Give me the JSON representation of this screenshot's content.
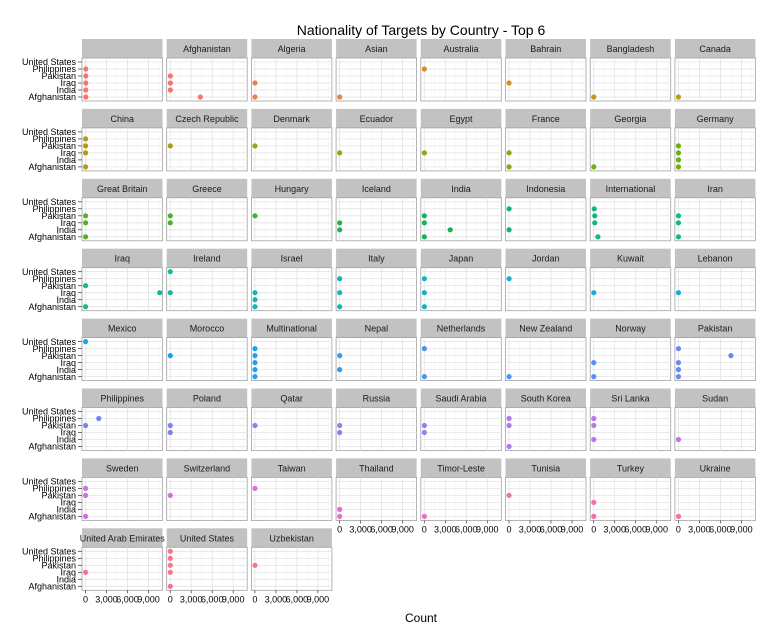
{
  "chart_data": {
    "type": "scatter",
    "title": "Nationality of Targets by Country - Top 6",
    "xlabel": "Count",
    "ylabel": "",
    "xlim": [
      -500,
      11000
    ],
    "x_ticks": [
      0,
      3000,
      6000,
      9000
    ],
    "x_tick_labels": [
      "0",
      "3,000",
      "6,000",
      "9,000"
    ],
    "y_categories": [
      "Afghanistan",
      "India",
      "Iraq",
      "Pakistan",
      "Philippines",
      "United States"
    ],
    "grid": true,
    "facet_layout": "8 columns, wrapped",
    "facets": [
      {
        "name": "",
        "color": "#F8766D",
        "points": [
          {
            "y": "Afghanistan",
            "x": 40
          },
          {
            "y": "India",
            "x": 40
          },
          {
            "y": "Iraq",
            "x": 40
          },
          {
            "y": "Pakistan",
            "x": 40
          },
          {
            "y": "Philippines",
            "x": 40
          }
        ]
      },
      {
        "name": "Afghanistan",
        "color": "#F6766B",
        "points": [
          {
            "y": "Afghanistan",
            "x": 4300
          },
          {
            "y": "India",
            "x": 20
          },
          {
            "y": "Iraq",
            "x": 20
          },
          {
            "y": "Pakistan",
            "x": 20
          }
        ]
      },
      {
        "name": "Algeria",
        "color": "#ED7D56",
        "points": [
          {
            "y": "Afghanistan",
            "x": 10
          },
          {
            "y": "Iraq",
            "x": 10
          }
        ]
      },
      {
        "name": "Asian",
        "color": "#E6853F",
        "points": [
          {
            "y": "Afghanistan",
            "x": 10
          }
        ]
      },
      {
        "name": "Australia",
        "color": "#DB8B2A",
        "points": [
          {
            "y": "Philippines",
            "x": 10
          }
        ]
      },
      {
        "name": "Bahrain",
        "color": "#D1901C",
        "points": [
          {
            "y": "Iraq",
            "x": 10
          }
        ]
      },
      {
        "name": "Bangladesh",
        "color": "#C69613",
        "points": [
          {
            "y": "Afghanistan",
            "x": 10
          }
        ]
      },
      {
        "name": "Canada",
        "color": "#BA9B12",
        "points": [
          {
            "y": "Afghanistan",
            "x": 10
          }
        ]
      },
      {
        "name": "China",
        "color": "#B39C12",
        "points": [
          {
            "y": "Afghanistan",
            "x": 10
          },
          {
            "y": "Iraq",
            "x": 10
          },
          {
            "y": "Pakistan",
            "x": 10
          },
          {
            "y": "Philippines",
            "x": 10
          }
        ]
      },
      {
        "name": "Czech Republic",
        "color": "#A9A012",
        "points": [
          {
            "y": "Pakistan",
            "x": 10
          }
        ]
      },
      {
        "name": "Denmark",
        "color": "#A0A212",
        "points": [
          {
            "y": "Pakistan",
            "x": 10
          }
        ]
      },
      {
        "name": "Ecuador",
        "color": "#97A512",
        "points": [
          {
            "y": "Iraq",
            "x": 10
          }
        ]
      },
      {
        "name": "Egypt",
        "color": "#8CA812",
        "points": [
          {
            "y": "Iraq",
            "x": 10
          }
        ]
      },
      {
        "name": "France",
        "color": "#82AA12",
        "points": [
          {
            "y": "Afghanistan",
            "x": 10
          },
          {
            "y": "Iraq",
            "x": 10
          }
        ]
      },
      {
        "name": "Georgia",
        "color": "#79AC12",
        "points": [
          {
            "y": "Afghanistan",
            "x": 10
          }
        ]
      },
      {
        "name": "Germany",
        "color": "#6EAE12",
        "points": [
          {
            "y": "Afghanistan",
            "x": 10
          },
          {
            "y": "India",
            "x": 10
          },
          {
            "y": "Iraq",
            "x": 10
          },
          {
            "y": "Pakistan",
            "x": 10
          }
        ]
      },
      {
        "name": "Great Britain",
        "color": "#5CB01F",
        "points": [
          {
            "y": "Afghanistan",
            "x": 10
          },
          {
            "y": "Iraq",
            "x": 10
          },
          {
            "y": "Pakistan",
            "x": 10
          }
        ]
      },
      {
        "name": "Greece",
        "color": "#4DB22B",
        "points": [
          {
            "y": "Iraq",
            "x": 10
          },
          {
            "y": "Pakistan",
            "x": 10
          }
        ]
      },
      {
        "name": "Hungary",
        "color": "#3AB43A",
        "points": [
          {
            "y": "Pakistan",
            "x": 10
          }
        ]
      },
      {
        "name": "Iceland",
        "color": "#1FB54B",
        "points": [
          {
            "y": "India",
            "x": 10
          },
          {
            "y": "Iraq",
            "x": 10
          }
        ]
      },
      {
        "name": "India",
        "color": "#12B55A",
        "points": [
          {
            "y": "Afghanistan",
            "x": 10
          },
          {
            "y": "India",
            "x": 3700
          },
          {
            "y": "Iraq",
            "x": 10
          },
          {
            "y": "Pakistan",
            "x": 10
          }
        ]
      },
      {
        "name": "Indonesia",
        "color": "#12B66A",
        "points": [
          {
            "y": "India",
            "x": 10
          },
          {
            "y": "Philippines",
            "x": 10
          }
        ]
      },
      {
        "name": "International",
        "color": "#12B779",
        "points": [
          {
            "y": "Afghanistan",
            "x": 600
          },
          {
            "y": "Iraq",
            "x": 150
          },
          {
            "y": "Pakistan",
            "x": 150
          },
          {
            "y": "Philippines",
            "x": 80
          }
        ]
      },
      {
        "name": "Iran",
        "color": "#12B788",
        "points": [
          {
            "y": "Afghanistan",
            "x": 10
          },
          {
            "y": "Iraq",
            "x": 10
          },
          {
            "y": "Pakistan",
            "x": 10
          }
        ]
      },
      {
        "name": "Iraq",
        "color": "#12B897",
        "points": [
          {
            "y": "Afghanistan",
            "x": 10
          },
          {
            "y": "Iraq",
            "x": 10600
          },
          {
            "y": "Pakistan",
            "x": 10
          }
        ]
      },
      {
        "name": "Ireland",
        "color": "#12B8A5",
        "points": [
          {
            "y": "Iraq",
            "x": 10
          },
          {
            "y": "United States",
            "x": 10
          }
        ]
      },
      {
        "name": "Israel",
        "color": "#12B7B1",
        "points": [
          {
            "y": "Afghanistan",
            "x": 10
          },
          {
            "y": "India",
            "x": 10
          },
          {
            "y": "Iraq",
            "x": 10
          }
        ]
      },
      {
        "name": "Italy",
        "color": "#12B5BD",
        "points": [
          {
            "y": "Afghanistan",
            "x": 10
          },
          {
            "y": "Iraq",
            "x": 10
          },
          {
            "y": "Philippines",
            "x": 10
          }
        ]
      },
      {
        "name": "Japan",
        "color": "#12B3C8",
        "points": [
          {
            "y": "Afghanistan",
            "x": 10
          },
          {
            "y": "Iraq",
            "x": 10
          },
          {
            "y": "Philippines",
            "x": 10
          }
        ]
      },
      {
        "name": "Jordan",
        "color": "#12B0D2",
        "points": [
          {
            "y": "Philippines",
            "x": 10
          }
        ]
      },
      {
        "name": "Kuwait",
        "color": "#12ADDB",
        "points": [
          {
            "y": "Iraq",
            "x": 10
          }
        ]
      },
      {
        "name": "Lebanon",
        "color": "#12AAE3",
        "points": [
          {
            "y": "Iraq",
            "x": 10
          }
        ]
      },
      {
        "name": "Mexico",
        "color": "#12A7E9",
        "points": [
          {
            "y": "United States",
            "x": 10
          }
        ]
      },
      {
        "name": "Morocco",
        "color": "#12A4EE",
        "points": [
          {
            "y": "Pakistan",
            "x": 10
          }
        ]
      },
      {
        "name": "Multinational",
        "color": "#22A0F2",
        "points": [
          {
            "y": "Afghanistan",
            "x": 10
          },
          {
            "y": "India",
            "x": 10
          },
          {
            "y": "Iraq",
            "x": 10
          },
          {
            "y": "Pakistan",
            "x": 10
          },
          {
            "y": "Philippines",
            "x": 10
          }
        ]
      },
      {
        "name": "Nepal",
        "color": "#359CF5",
        "points": [
          {
            "y": "India",
            "x": 10
          },
          {
            "y": "Pakistan",
            "x": 10
          }
        ]
      },
      {
        "name": "Netherlands",
        "color": "#4598F6",
        "points": [
          {
            "y": "Afghanistan",
            "x": 10
          },
          {
            "y": "Philippines",
            "x": 10
          }
        ]
      },
      {
        "name": "New Zealand",
        "color": "#4C94F6",
        "points": [
          {
            "y": "Afghanistan",
            "x": 10
          }
        ]
      },
      {
        "name": "Norway",
        "color": "#5890F6",
        "points": [
          {
            "y": "Afghanistan",
            "x": 10
          },
          {
            "y": "Iraq",
            "x": 10
          }
        ]
      },
      {
        "name": "Pakistan",
        "color": "#658CF5",
        "points": [
          {
            "y": "Afghanistan",
            "x": 10
          },
          {
            "y": "India",
            "x": 10
          },
          {
            "y": "Iraq",
            "x": 10
          },
          {
            "y": "Pakistan",
            "x": 7500
          },
          {
            "y": "Philippines",
            "x": 10
          }
        ]
      },
      {
        "name": "Philippines",
        "color": "#7088F4",
        "points": [
          {
            "y": "Philippines",
            "x": 1900
          },
          {
            "y": "Pakistan",
            "x": 10
          }
        ]
      },
      {
        "name": "Poland",
        "color": "#7C85F3",
        "points": [
          {
            "y": "Iraq",
            "x": 10
          },
          {
            "y": "Pakistan",
            "x": 10
          }
        ]
      },
      {
        "name": "Qatar",
        "color": "#8782F2",
        "points": [
          {
            "y": "Pakistan",
            "x": 10
          }
        ]
      },
      {
        "name": "Russia",
        "color": "#947FF1",
        "points": [
          {
            "y": "Iraq",
            "x": 10
          },
          {
            "y": "Pakistan",
            "x": 10
          }
        ]
      },
      {
        "name": "Saudi Arabia",
        "color": "#A17CF0",
        "points": [
          {
            "y": "Iraq",
            "x": 10
          },
          {
            "y": "Pakistan",
            "x": 10
          }
        ]
      },
      {
        "name": "South Korea",
        "color": "#AE79EF",
        "points": [
          {
            "y": "Afghanistan",
            "x": 10
          },
          {
            "y": "Pakistan",
            "x": 10
          },
          {
            "y": "Philippines",
            "x": 10
          }
        ]
      },
      {
        "name": "Sri Lanka",
        "color": "#BA76EC",
        "points": [
          {
            "y": "India",
            "x": 10
          },
          {
            "y": "Pakistan",
            "x": 10
          },
          {
            "y": "Philippines",
            "x": 10
          }
        ]
      },
      {
        "name": "Sudan",
        "color": "#C574E8",
        "points": [
          {
            "y": "India",
            "x": 10
          }
        ]
      },
      {
        "name": "Sweden",
        "color": "#CE72E4",
        "points": [
          {
            "y": "Afghanistan",
            "x": 10
          },
          {
            "y": "Pakistan",
            "x": 10
          },
          {
            "y": "Philippines",
            "x": 10
          }
        ]
      },
      {
        "name": "Switzerland",
        "color": "#D770DE",
        "points": [
          {
            "y": "Pakistan",
            "x": 10
          }
        ]
      },
      {
        "name": "Taiwan",
        "color": "#DF6FD7",
        "points": [
          {
            "y": "Philippines",
            "x": 10
          }
        ]
      },
      {
        "name": "Thailand",
        "color": "#E66ECF",
        "points": [
          {
            "y": "Afghanistan",
            "x": 10
          },
          {
            "y": "India",
            "x": 10
          }
        ]
      },
      {
        "name": "Timor-Leste",
        "color": "#EC6EC5",
        "points": [
          {
            "y": "Afghanistan",
            "x": 10
          }
        ]
      },
      {
        "name": "Tunisia",
        "color": "#F06EBA",
        "points": [
          {
            "y": "Pakistan",
            "x": 10
          }
        ]
      },
      {
        "name": "Turkey",
        "color": "#F36FAF",
        "points": [
          {
            "y": "Afghanistan",
            "x": 10
          },
          {
            "y": "Iraq",
            "x": 10
          }
        ]
      },
      {
        "name": "Ukraine",
        "color": "#F571A3",
        "points": [
          {
            "y": "Afghanistan",
            "x": 10
          }
        ]
      },
      {
        "name": "United Arab Emirates",
        "color": "#F77297",
        "points": [
          {
            "y": "Iraq",
            "x": 10
          }
        ]
      },
      {
        "name": "United States",
        "color": "#F8748A",
        "points": [
          {
            "y": "Afghanistan",
            "x": 10
          },
          {
            "y": "Iraq",
            "x": 10
          },
          {
            "y": "Pakistan",
            "x": 10
          },
          {
            "y": "Philippines",
            "x": 10
          },
          {
            "y": "United States",
            "x": 10
          }
        ]
      },
      {
        "name": "Uzbekistan",
        "color": "#F8767D",
        "points": [
          {
            "y": "Pakistan",
            "x": 10
          }
        ]
      }
    ]
  }
}
